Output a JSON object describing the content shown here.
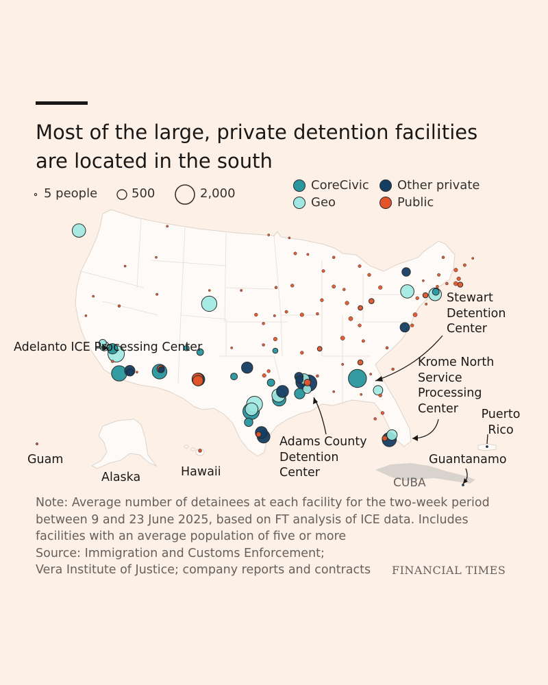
{
  "title": "Most of the large, private detention facilities are located in the south",
  "size_legend": [
    {
      "label": "5 people",
      "value": 5
    },
    {
      "label": "500",
      "value": 500
    },
    {
      "label": "2,000",
      "value": 2000
    }
  ],
  "categories": [
    {
      "key": "corecivic",
      "label": "CoreCivic",
      "color": "#28979e"
    },
    {
      "key": "other",
      "label": "Other private",
      "color": "#153e63"
    },
    {
      "key": "geo",
      "label": "Geo",
      "color": "#9ee8e1"
    },
    {
      "key": "public",
      "label": "Public",
      "color": "#e2542a"
    }
  ],
  "callouts": {
    "adelanto": "Adelanto ICE Processing Center",
    "stewart": "Stewart Detention Center",
    "krome": "Krome North Service Processing Center",
    "adams": "Adams County Detention Center",
    "puerto_rico": "Puerto Rico",
    "guantanamo": "Guantanamo"
  },
  "region_labels": {
    "guam": "Guam",
    "alaska": "Alaska",
    "hawaii": "Hawaii",
    "cuba": "CUBA"
  },
  "note_lines": [
    "Note: Average number of detainees at each facility for the two-week period",
    "between 9 and 23 June 2025, based on FT analysis of ICE data. Includes",
    "facilities with an average population of five or more",
    "Source: Immigration and Customs Enforcement;",
    "Vera Institute of Justice; company reports and contracts"
  ],
  "brand": "FINANCIAL TIMES",
  "facilities": [
    {
      "place": "Tacoma WA",
      "lon": -122.44,
      "lat": 47.25,
      "type": "geo",
      "pop": 1000
    },
    {
      "place": "Adelanto CA",
      "lon": -117.41,
      "lat": 34.58,
      "type": "geo",
      "pop": 1500
    },
    {
      "place": "Bakersfield CA",
      "lon": -119.02,
      "lat": 35.37,
      "type": "geo",
      "pop": 500
    },
    {
      "place": "McFarland CA",
      "lon": -119.23,
      "lat": 35.68,
      "type": "geo",
      "pop": 300
    },
    {
      "place": "California City CA",
      "lon": -117.9,
      "lat": 35.1,
      "type": "corecivic",
      "pop": 600
    },
    {
      "place": "Otay Mesa CA",
      "lon": -117.0,
      "lat": 32.57,
      "type": "corecivic",
      "pop": 1300
    },
    {
      "place": "Imperial CA",
      "lon": -115.57,
      "lat": 32.85,
      "type": "other",
      "pop": 600
    },
    {
      "place": "Calexico CA",
      "lon": -115.5,
      "lat": 32.68,
      "type": "other",
      "pop": 300
    },
    {
      "place": "Eloy AZ",
      "lon": -111.55,
      "lat": 32.75,
      "type": "corecivic",
      "pop": 1200
    },
    {
      "place": "Florence AZ",
      "lon": -111.39,
      "lat": 33.03,
      "type": "public",
      "pop": 300
    },
    {
      "place": "Florence AZ 2",
      "lon": -111.3,
      "lat": 32.95,
      "type": "other",
      "pop": 200
    },
    {
      "place": "Aurora CO",
      "lon": -104.83,
      "lat": 39.73,
      "type": "geo",
      "pop": 1300
    },
    {
      "place": "Estancia NM",
      "lon": -106.06,
      "lat": 34.76,
      "type": "corecivic",
      "pop": 250
    },
    {
      "place": "Milan NM",
      "lon": -107.89,
      "lat": 35.17,
      "type": "corecivic",
      "pop": 150
    },
    {
      "place": "Chaparral NM",
      "lon": -106.39,
      "lat": 32.02,
      "type": "public",
      "pop": 700
    },
    {
      "place": "Otero NM",
      "lon": -106.3,
      "lat": 31.95,
      "type": "other",
      "pop": 900
    },
    {
      "place": "El Paso TX",
      "lon": -106.35,
      "lat": 31.82,
      "type": "public",
      "pop": 600
    },
    {
      "place": "Dilley TX",
      "lon": -99.17,
      "lat": 28.67,
      "type": "corecivic",
      "pop": 1500
    },
    {
      "place": "Pearsall TX",
      "lon": -99.1,
      "lat": 28.89,
      "type": "geo",
      "pop": 900
    },
    {
      "place": "San Antonio TX",
      "lon": -98.7,
      "lat": 29.4,
      "type": "geo",
      "pop": 1400
    },
    {
      "place": "Laredo TX",
      "lon": -99.5,
      "lat": 27.55,
      "type": "corecivic",
      "pop": 400
    },
    {
      "place": "Raymondville TX",
      "lon": -97.78,
      "lat": 26.48,
      "type": "other",
      "pop": 800
    },
    {
      "place": "Los Fresnos TX",
      "lon": -97.48,
      "lat": 26.07,
      "type": "other",
      "pop": 900
    },
    {
      "place": "Edinburg TX",
      "lon": -98.16,
      "lat": 26.3,
      "type": "public",
      "pop": 150
    },
    {
      "place": "Houston TX",
      "lon": -95.37,
      "lat": 29.9,
      "type": "corecivic",
      "pop": 1000
    },
    {
      "place": "Conroe TX",
      "lon": -95.45,
      "lat": 30.3,
      "type": "geo",
      "pop": 1000
    },
    {
      "place": "Livingston TX",
      "lon": -94.93,
      "lat": 30.71,
      "type": "other",
      "pop": 800
    },
    {
      "place": "Haskell TX",
      "lon": -99.7,
      "lat": 33.16,
      "type": "other",
      "pop": 700
    },
    {
      "place": "Big Spring TX",
      "lon": -101.48,
      "lat": 32.25,
      "type": "corecivic",
      "pop": 250
    },
    {
      "place": "Limestone TX",
      "lon": -96.48,
      "lat": 31.62,
      "type": "corecivic",
      "pop": 300
    },
    {
      "place": "Dallas TX",
      "lon": -96.8,
      "lat": 32.8,
      "type": "public",
      "pop": 60
    },
    {
      "place": "Prairieland TX",
      "lon": -97.4,
      "lat": 32.35,
      "type": "public",
      "pop": 80
    },
    {
      "place": "Jena LA",
      "lon": -92.13,
      "lat": 31.68,
      "type": "other",
      "pop": 1200
    },
    {
      "place": "Natchez MS",
      "lon": -91.4,
      "lat": 31.56,
      "type": "other",
      "pop": 1500
    },
    {
      "place": "Jena LA 2",
      "lon": -92.0,
      "lat": 32.0,
      "type": "geo",
      "pop": 600
    },
    {
      "place": "Basile LA",
      "lon": -92.6,
      "lat": 30.49,
      "type": "corecivic",
      "pop": 600
    },
    {
      "place": "Angola LA",
      "lon": -91.6,
      "lat": 30.95,
      "type": "geo",
      "pop": 400
    },
    {
      "place": "Jonesboro LA",
      "lon": -92.7,
      "lat": 32.24,
      "type": "other",
      "pop": 400
    },
    {
      "place": "Ferriday LA",
      "lon": -91.55,
      "lat": 31.63,
      "type": "public",
      "pop": 250
    },
    {
      "place": "Winn LA",
      "lon": -92.64,
      "lat": 31.94,
      "type": "other",
      "pop": 300
    },
    {
      "place": "Lumpkin GA",
      "lon": -84.8,
      "lat": 32.05,
      "type": "corecivic",
      "pop": 1800
    },
    {
      "place": "Folkston GA",
      "lon": -82.01,
      "lat": 30.83,
      "type": "geo",
      "pop": 500
    },
    {
      "place": "Miami FL",
      "lon": -80.49,
      "lat": 25.76,
      "type": "other",
      "pop": 1100
    },
    {
      "place": "Pompano FL",
      "lon": -80.13,
      "lat": 26.24,
      "type": "geo",
      "pop": 600
    },
    {
      "place": "Ochopee FL",
      "lon": -81.1,
      "lat": 25.9,
      "type": "public",
      "pop": 150
    },
    {
      "place": "Elizabeth NJ",
      "lon": -74.3,
      "lat": 40.7,
      "type": "geo",
      "pop": 900
    },
    {
      "place": "Newark NJ",
      "lon": -74.2,
      "lat": 40.95,
      "type": "corecivic",
      "pop": 250
    },
    {
      "place": "Moshannon PA",
      "lon": -78.06,
      "lat": 41.0,
      "type": "geo",
      "pop": 1000
    },
    {
      "place": "Batavia NY",
      "lon": -78.2,
      "lat": 43.0,
      "type": "other",
      "pop": 400
    },
    {
      "place": "Farmville VA",
      "lon": -78.39,
      "lat": 37.3,
      "type": "other",
      "pop": 500
    },
    {
      "place": "Tacoma WA 2",
      "lon": -120.5,
      "lat": 40.5,
      "type": "public",
      "pop": 20
    },
    {
      "place": "Nevada",
      "lon": -117.0,
      "lat": 39.5,
      "type": "public",
      "pop": 40
    },
    {
      "place": "Mountain",
      "lon": -112.0,
      "lat": 44.5,
      "type": "public",
      "pop": 10
    },
    {
      "place": "Montana",
      "lon": -110.5,
      "lat": 47.7,
      "type": "public",
      "pop": 10
    },
    {
      "place": "Wyoming",
      "lon": -104.8,
      "lat": 41.1,
      "type": "public",
      "pop": 10
    },
    {
      "place": "Nebraska",
      "lon": -100.5,
      "lat": 41.1,
      "type": "public",
      "pop": 30
    },
    {
      "place": "Kansas",
      "lon": -98.5,
      "lat": 38.6,
      "type": "public",
      "pop": 60
    },
    {
      "place": "Kansas2",
      "lon": -97.5,
      "lat": 37.7,
      "type": "public",
      "pop": 40
    },
    {
      "place": "Kansas3",
      "lon": -96.0,
      "lat": 38.5,
      "type": "public",
      "pop": 30
    },
    {
      "place": "Iowa",
      "lon": -93.6,
      "lat": 41.6,
      "type": "public",
      "pop": 60
    },
    {
      "place": "Iowa2",
      "lon": -95.8,
      "lat": 41.4,
      "type": "public",
      "pop": 40
    },
    {
      "place": "Minnesota",
      "lon": -93.2,
      "lat": 44.9,
      "type": "public",
      "pop": 50
    },
    {
      "place": "Minnesota2",
      "lon": -94.0,
      "lat": 46.5,
      "type": "public",
      "pop": 20
    },
    {
      "place": "Dakotas",
      "lon": -96.8,
      "lat": 46.8,
      "type": "public",
      "pop": 10
    },
    {
      "place": "Wisconsin",
      "lon": -89.4,
      "lat": 43.1,
      "type": "public",
      "pop": 50
    },
    {
      "place": "Wisconsin2",
      "lon": -88.0,
      "lat": 44.5,
      "type": "public",
      "pop": 40
    },
    {
      "place": "Wisconsin3",
      "lon": -91.5,
      "lat": 44.8,
      "type": "public",
      "pop": 30
    },
    {
      "place": "Illinois",
      "lon": -89.6,
      "lat": 40.1,
      "type": "public",
      "pop": 60
    },
    {
      "place": "Illinois2",
      "lon": -88.0,
      "lat": 41.5,
      "type": "public",
      "pop": 70
    },
    {
      "place": "Michigan",
      "lon": -84.5,
      "lat": 43.6,
      "type": "public",
      "pop": 50
    },
    {
      "place": "Michigan2",
      "lon": -83.2,
      "lat": 42.7,
      "type": "public",
      "pop": 60
    },
    {
      "place": "Indiana",
      "lon": -86.2,
      "lat": 39.8,
      "type": "public",
      "pop": 80
    },
    {
      "place": "Indiana2",
      "lon": -86.6,
      "lat": 41.2,
      "type": "public",
      "pop": 40
    },
    {
      "place": "Ohio",
      "lon": -82.9,
      "lat": 40.0,
      "type": "public",
      "pop": 150
    },
    {
      "place": "Ohio2",
      "lon": -84.4,
      "lat": 39.3,
      "type": "public",
      "pop": 120
    },
    {
      "place": "Ohio3",
      "lon": -81.7,
      "lat": 41.4,
      "type": "public",
      "pop": 80
    },
    {
      "place": "Kentucky",
      "lon": -85.7,
      "lat": 38.2,
      "type": "public",
      "pop": 100
    },
    {
      "place": "Kentucky2",
      "lon": -84.5,
      "lat": 37.5,
      "type": "public",
      "pop": 60
    },
    {
      "place": "Missouri",
      "lon": -92.3,
      "lat": 38.6,
      "type": "public",
      "pop": 80
    },
    {
      "place": "Missouri2",
      "lon": -94.4,
      "lat": 38.9,
      "type": "public",
      "pop": 50
    },
    {
      "place": "Missouri3",
      "lon": -90.2,
      "lat": 38.7,
      "type": "public",
      "pop": 40
    },
    {
      "place": "Tennessee",
      "lon": -86.8,
      "lat": 36.2,
      "type": "public",
      "pop": 100
    },
    {
      "place": "Tennessee2",
      "lon": -89.9,
      "lat": 35.1,
      "type": "public",
      "pop": 120
    },
    {
      "place": "Tennessee3",
      "lon": -84.0,
      "lat": 35.9,
      "type": "public",
      "pop": 50
    },
    {
      "place": "Arkansas",
      "lon": -92.3,
      "lat": 34.7,
      "type": "public",
      "pop": 60
    },
    {
      "place": "Oklahoma",
      "lon": -97.5,
      "lat": 35.5,
      "type": "public",
      "pop": 40
    },
    {
      "place": "Oklahoma2",
      "lon": -95.9,
      "lat": 36.1,
      "type": "public",
      "pop": 80
    },
    {
      "place": "Oklahoma3",
      "lon": -95.9,
      "lat": 34.9,
      "type": "corecivic",
      "pop": 150
    },
    {
      "place": "Alabama",
      "lon": -86.8,
      "lat": 33.5,
      "type": "public",
      "pop": 30
    },
    {
      "place": "Alabama2",
      "lon": -88.0,
      "lat": 30.7,
      "type": "public",
      "pop": 20
    },
    {
      "place": "Georgia",
      "lon": -84.4,
      "lat": 33.7,
      "type": "public",
      "pop": 150
    },
    {
      "place": "Georgia2",
      "lon": -83.0,
      "lat": 32.5,
      "type": "public",
      "pop": 20
    },
    {
      "place": "North Carolina",
      "lon": -80.8,
      "lat": 35.2,
      "type": "public",
      "pop": 40
    },
    {
      "place": "South Carolina",
      "lon": -80.0,
      "lat": 33.0,
      "type": "public",
      "pop": 40
    },
    {
      "place": "Virginia",
      "lon": -77.4,
      "lat": 37.5,
      "type": "public",
      "pop": 60
    },
    {
      "place": "Virginia2",
      "lon": -77.0,
      "lat": 38.6,
      "type": "public",
      "pop": 100
    },
    {
      "place": "Pennsylvania",
      "lon": -75.6,
      "lat": 40.6,
      "type": "public",
      "pop": 150
    },
    {
      "place": "Pennsylvania2",
      "lon": -76.7,
      "lat": 40.3,
      "type": "public",
      "pop": 60
    },
    {
      "place": "New York",
      "lon": -73.8,
      "lat": 42.7,
      "type": "public",
      "pop": 50
    },
    {
      "place": "New York2",
      "lon": -75.9,
      "lat": 42.1,
      "type": "public",
      "pop": 20
    },
    {
      "place": "New York3",
      "lon": -74.0,
      "lat": 41.5,
      "type": "public",
      "pop": 40
    },
    {
      "place": "Vermont",
      "lon": -73.2,
      "lat": 44.5,
      "type": "public",
      "pop": 40
    },
    {
      "place": "New Hampshire",
      "lon": -71.5,
      "lat": 43.2,
      "type": "public",
      "pop": 80
    },
    {
      "place": "Maine",
      "lon": -70.3,
      "lat": 43.7,
      "type": "public",
      "pop": 50
    },
    {
      "place": "Maine2",
      "lon": -69.2,
      "lat": 44.4,
      "type": "public",
      "pop": 20
    },
    {
      "place": "Massachusetts",
      "lon": -71.1,
      "lat": 42.3,
      "type": "public",
      "pop": 80
    },
    {
      "place": "Massachusetts2",
      "lon": -70.9,
      "lat": 41.7,
      "type": "public",
      "pop": 150
    },
    {
      "place": "Rhode Island",
      "lon": -71.5,
      "lat": 41.8,
      "type": "public",
      "pop": 100
    },
    {
      "place": "Connecticut",
      "lon": -72.7,
      "lat": 41.8,
      "type": "public",
      "pop": 40
    },
    {
      "place": "Delaware",
      "lon": -75.5,
      "lat": 39.7,
      "type": "public",
      "pop": 30
    },
    {
      "place": "Idaho",
      "lon": -116.2,
      "lat": 43.6,
      "type": "public",
      "pop": 20
    },
    {
      "place": "Utah",
      "lon": -111.9,
      "lat": 40.7,
      "type": "public",
      "pop": 30
    },
    {
      "place": "Arizona2",
      "lon": -114.6,
      "lat": 32.7,
      "type": "public",
      "pop": 20
    },
    {
      "place": "California3",
      "lon": -121.5,
      "lat": 38.5,
      "type": "public",
      "pop": 20
    },
    {
      "place": "California4",
      "lon": -117.9,
      "lat": 33.8,
      "type": "public",
      "pop": 40
    },
    {
      "place": "Florida",
      "lon": -81.4,
      "lat": 28.5,
      "type": "public",
      "pop": 60
    },
    {
      "place": "Florida2",
      "lon": -82.4,
      "lat": 27.9,
      "type": "public",
      "pop": 40
    },
    {
      "place": "Florida3",
      "lon": -81.7,
      "lat": 30.3,
      "type": "public",
      "pop": 60
    },
    {
      "place": "Florida4",
      "lon": -84.3,
      "lat": 30.4,
      "type": "public",
      "pop": 20
    },
    {
      "place": "Texas Panhandle",
      "lon": -101.8,
      "lat": 35.2,
      "type": "public",
      "pop": 20
    },
    {
      "place": "Mississippi",
      "lon": -90.2,
      "lat": 32.3,
      "type": "public",
      "pop": 40
    }
  ],
  "offshore": [
    {
      "place": "Guam",
      "type": "public",
      "pop": 10
    },
    {
      "place": "Hawaii",
      "type": "public",
      "pop": 60
    },
    {
      "place": "Puerto Rico",
      "type": "other",
      "pop": 10
    },
    {
      "place": "Guantanamo",
      "type": "other",
      "pop": 10
    }
  ]
}
